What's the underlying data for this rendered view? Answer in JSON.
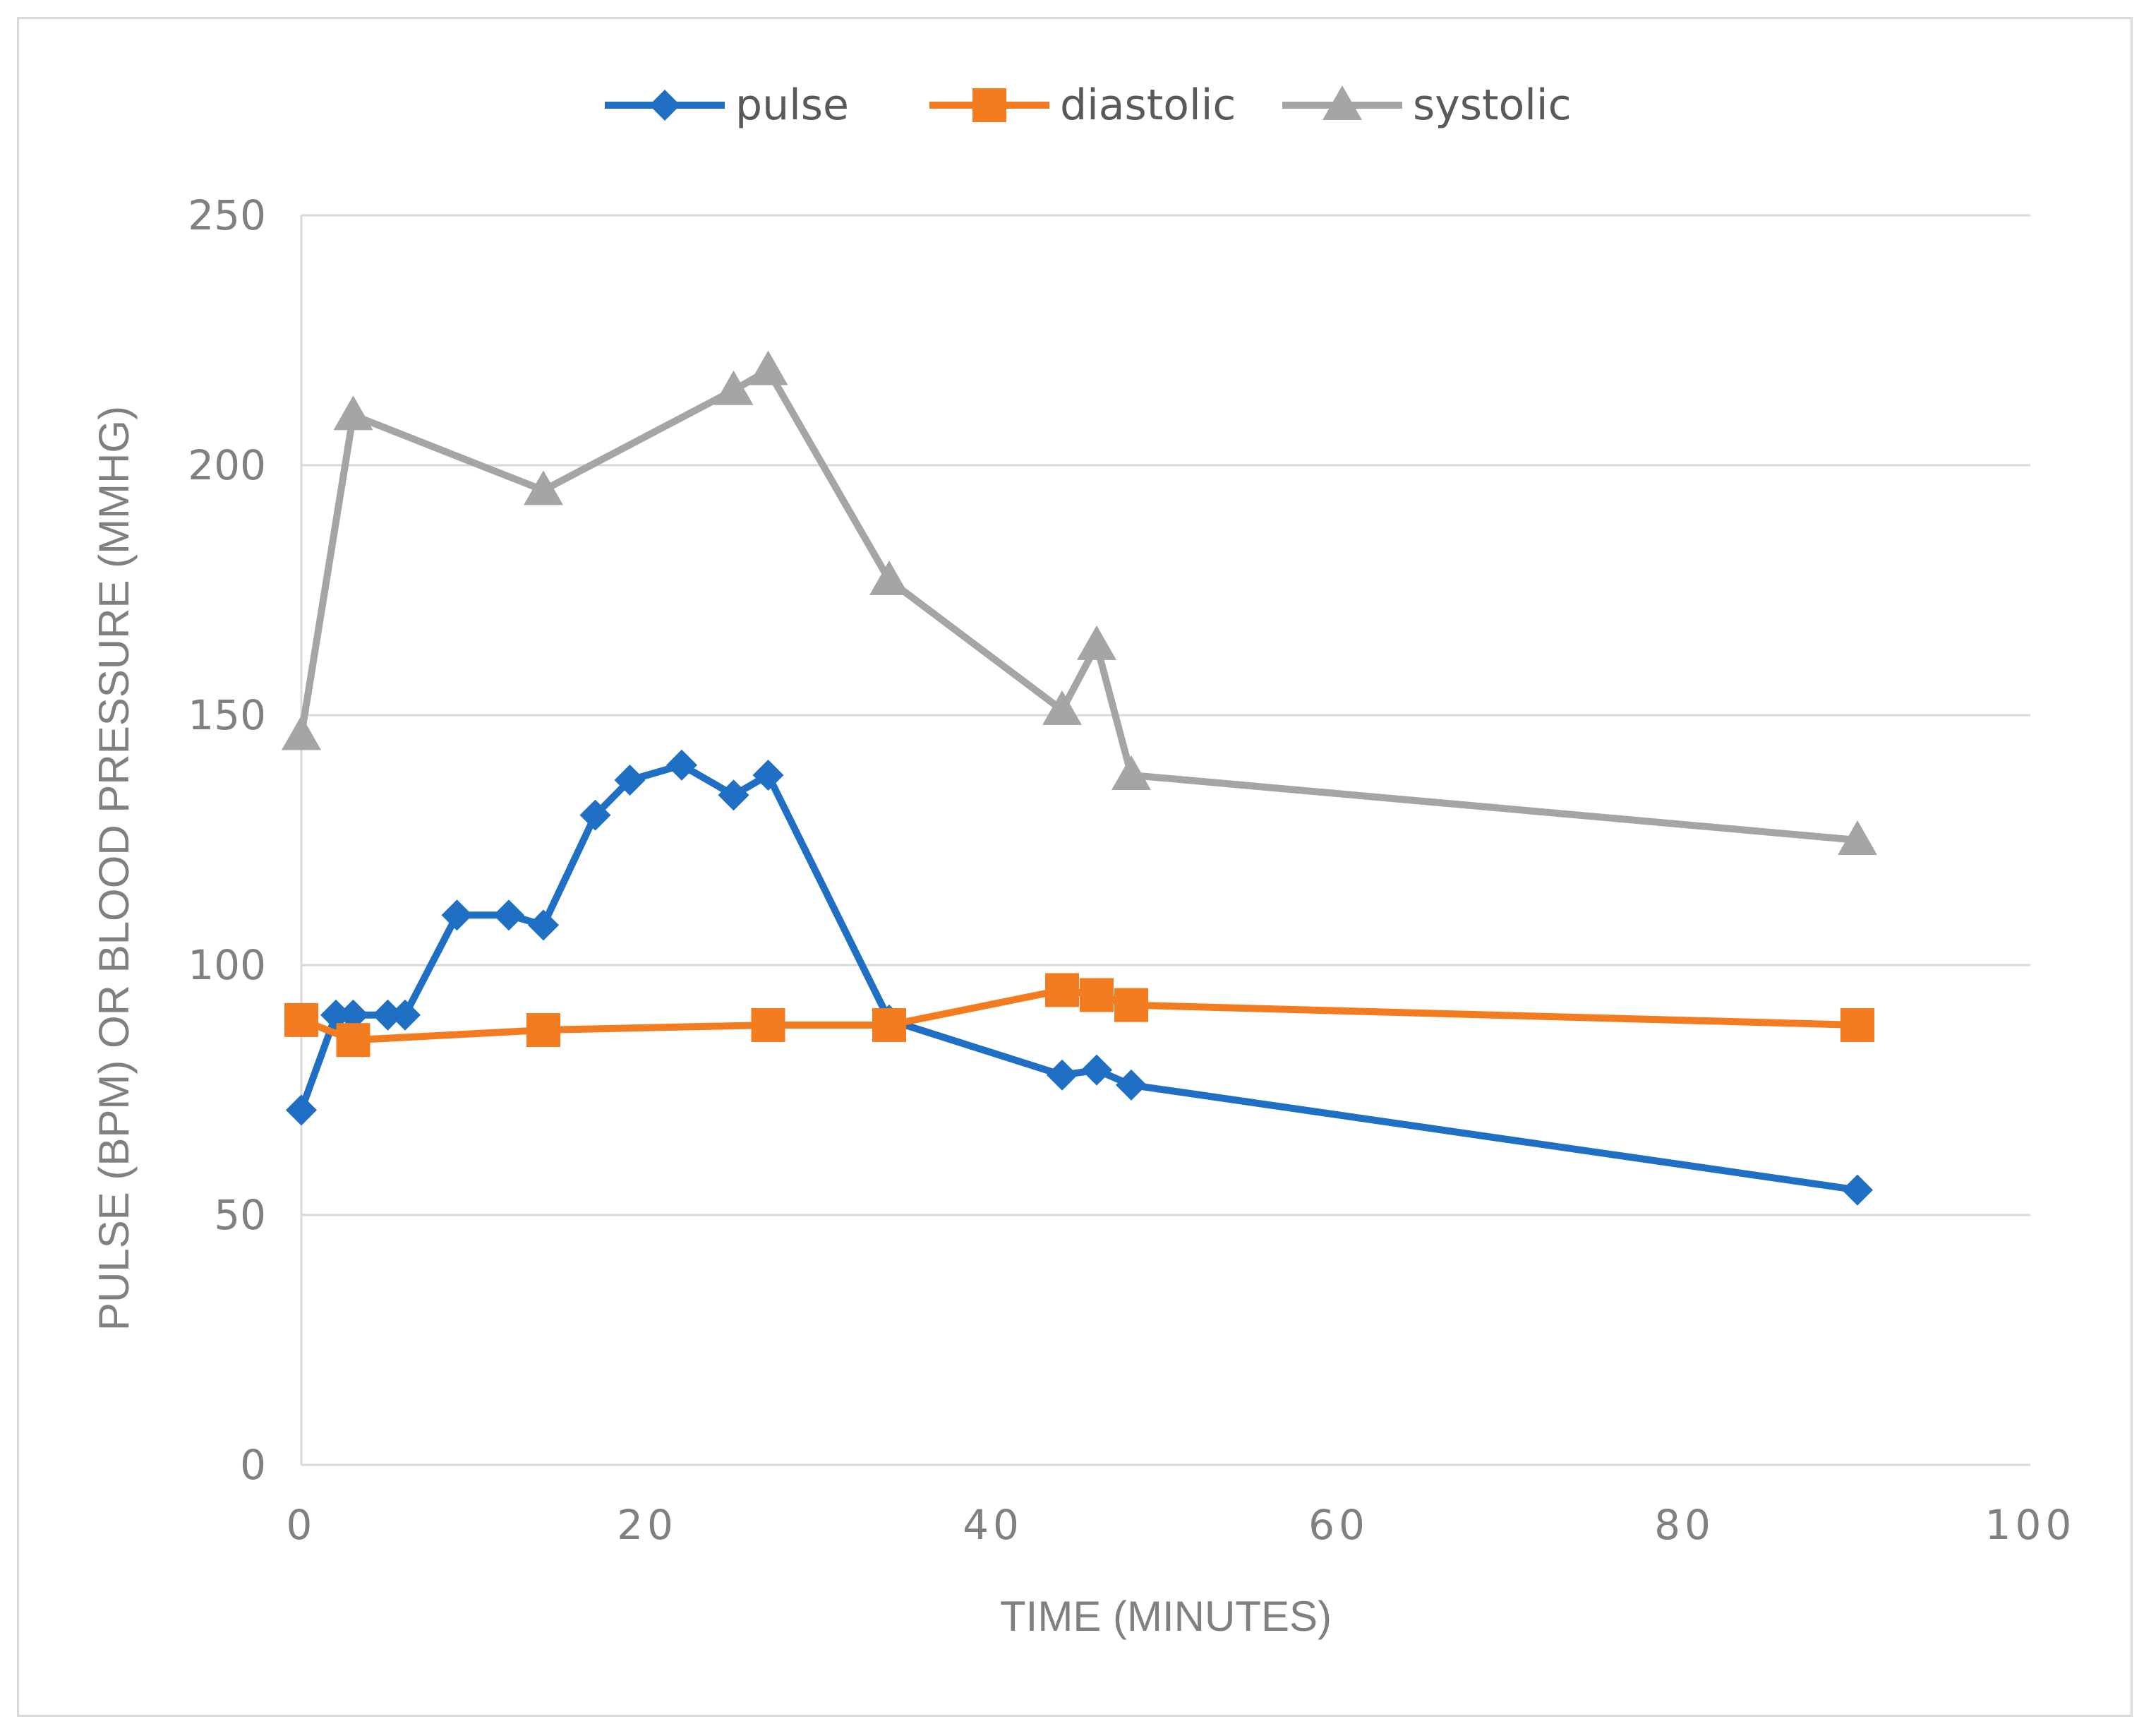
{
  "chart_data": {
    "type": "line",
    "title": "",
    "xlabel": "TIME (MINUTES)",
    "ylabel": "PULSE (BPM) OR BLOOD PRESSURE (MMHG)",
    "xlim": [
      0,
      100
    ],
    "ylim": [
      0,
      250
    ],
    "xticks": [
      0,
      20,
      40,
      60,
      80,
      100
    ],
    "yticks": [
      0,
      50,
      100,
      150,
      200,
      250
    ],
    "grid": "horizontal",
    "legend_position": "top-center",
    "series": [
      {
        "name": "pulse",
        "color": "#1f6fc5",
        "marker": "diamond",
        "points": [
          [
            0,
            71
          ],
          [
            2,
            90
          ],
          [
            3,
            90
          ],
          [
            5,
            90
          ],
          [
            6,
            90
          ],
          [
            9,
            110
          ],
          [
            12,
            110
          ],
          [
            14,
            108
          ],
          [
            17,
            130
          ],
          [
            19,
            137
          ],
          [
            22,
            140
          ],
          [
            25,
            134
          ],
          [
            27,
            138
          ],
          [
            34,
            89
          ],
          [
            44,
            78
          ],
          [
            46,
            79
          ],
          [
            48,
            76
          ],
          [
            90,
            55
          ]
        ]
      },
      {
        "name": "diastolic",
        "color": "#f47c20",
        "marker": "square",
        "points": [
          [
            0,
            89
          ],
          [
            3,
            85
          ],
          [
            14,
            87
          ],
          [
            27,
            88
          ],
          [
            34,
            88
          ],
          [
            44,
            95
          ],
          [
            46,
            94
          ],
          [
            48,
            92
          ],
          [
            90,
            88
          ]
        ]
      },
      {
        "name": "systolic",
        "color": "#a5a5a5",
        "marker": "triangle",
        "points": [
          [
            0,
            146
          ],
          [
            3,
            210
          ],
          [
            14,
            195
          ],
          [
            25,
            215
          ],
          [
            27,
            219
          ],
          [
            34,
            177
          ],
          [
            44,
            151
          ],
          [
            46,
            164
          ],
          [
            48,
            138
          ],
          [
            90,
            125
          ]
        ]
      }
    ]
  }
}
